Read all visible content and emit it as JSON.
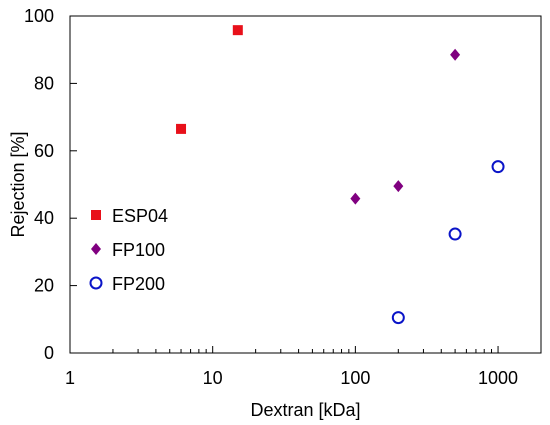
{
  "chart_data": {
    "type": "scatter",
    "title": "",
    "xlabel": "Dextran [kDa]",
    "ylabel": "Rejection [%]",
    "xscale": "log",
    "xlim": [
      1,
      2000
    ],
    "ylim": [
      0,
      100
    ],
    "xticks": [
      1,
      10,
      100,
      1000
    ],
    "xtick_labels": [
      "1",
      "10",
      "100",
      "1000"
    ],
    "yticks": [
      0,
      20,
      40,
      60,
      80,
      100
    ],
    "ytick_labels": [
      "0",
      "20",
      "40",
      "60",
      "80",
      "100"
    ],
    "grid": false,
    "legend_position": "center-left",
    "series": [
      {
        "name": "ESP04",
        "marker": "square",
        "color": "#e8101a",
        "filled": true,
        "points": [
          {
            "x": 6,
            "y": 66.5
          },
          {
            "x": 15,
            "y": 95.8
          }
        ]
      },
      {
        "name": "FP100",
        "marker": "diamond",
        "color": "#800080",
        "filled": true,
        "points": [
          {
            "x": 100,
            "y": 45.8
          },
          {
            "x": 200,
            "y": 49.5
          },
          {
            "x": 500,
            "y": 88.5
          }
        ]
      },
      {
        "name": "FP200",
        "marker": "circle",
        "color": "#0a14c8",
        "filled": false,
        "points": [
          {
            "x": 200,
            "y": 10.5
          },
          {
            "x": 500,
            "y": 35.3
          },
          {
            "x": 1000,
            "y": 55.3
          }
        ]
      }
    ]
  }
}
